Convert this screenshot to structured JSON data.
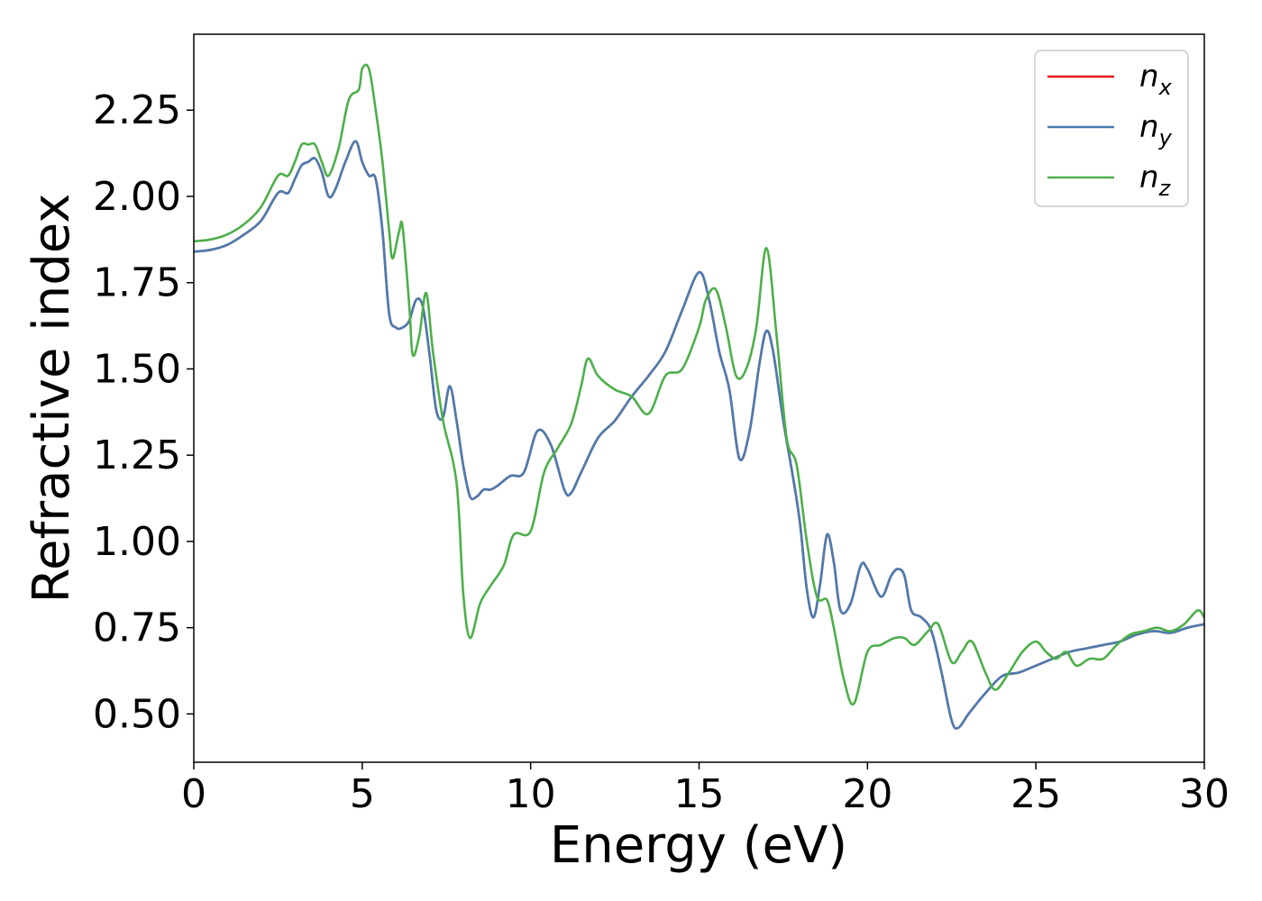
{
  "chart_data": {
    "type": "line",
    "title": "",
    "xlabel": "Energy (eV)",
    "ylabel": "Refractive index",
    "xlim": [
      0,
      30
    ],
    "ylim": [
      0.36,
      2.47
    ],
    "xticks": [
      0,
      5,
      10,
      15,
      20,
      25,
      30
    ],
    "yticks": [
      0.5,
      0.75,
      1.0,
      1.25,
      1.5,
      1.75,
      2.0,
      2.25
    ],
    "ytick_labels": [
      "0.50",
      "0.75",
      "1.00",
      "1.25",
      "1.50",
      "1.75",
      "2.00",
      "2.25"
    ],
    "grid": false,
    "legend_position": "top-right",
    "series": [
      {
        "name": "n",
        "subscript": "x",
        "color": "#e41a1c",
        "x": [
          0,
          0.5,
          1,
          1.5,
          2,
          2.5,
          2.8,
          3.0,
          3.2,
          3.4,
          3.6,
          3.8,
          4.0,
          4.2,
          4.5,
          4.8,
          5.0,
          5.2,
          5.4,
          5.6,
          5.8,
          6.0,
          6.2,
          6.4,
          6.6,
          6.8,
          7.0,
          7.2,
          7.4,
          7.6,
          7.8,
          8.0,
          8.2,
          8.4,
          8.6,
          8.8,
          9.0,
          9.4,
          9.8,
          10.2,
          10.6,
          11.0,
          11.2,
          11.5,
          12.0,
          12.5,
          13.0,
          13.5,
          14.0,
          14.5,
          15.0,
          15.3,
          15.6,
          15.9,
          16.2,
          16.5,
          16.8,
          17.0,
          17.2,
          17.5,
          17.8,
          18.0,
          18.2,
          18.4,
          18.6,
          18.8,
          19.0,
          19.2,
          19.5,
          19.8,
          20.0,
          20.4,
          20.7,
          20.9,
          21.1,
          21.3,
          21.6,
          21.9,
          22.2,
          22.5,
          22.7,
          23.0,
          23.5,
          24.0,
          24.5,
          25.0,
          25.5,
          26.0,
          26.5,
          27.0,
          27.5,
          28.0,
          28.5,
          29.0,
          29.5,
          30.0
        ],
        "y": [
          1.84,
          1.845,
          1.86,
          1.89,
          1.93,
          2.01,
          2.01,
          2.05,
          2.09,
          2.1,
          2.11,
          2.07,
          2.0,
          2.02,
          2.1,
          2.16,
          2.1,
          2.06,
          2.05,
          1.9,
          1.66,
          1.62,
          1.62,
          1.64,
          1.7,
          1.68,
          1.54,
          1.38,
          1.36,
          1.45,
          1.35,
          1.22,
          1.13,
          1.13,
          1.15,
          1.15,
          1.16,
          1.19,
          1.2,
          1.32,
          1.28,
          1.15,
          1.14,
          1.2,
          1.3,
          1.35,
          1.42,
          1.48,
          1.55,
          1.67,
          1.78,
          1.7,
          1.55,
          1.44,
          1.24,
          1.32,
          1.52,
          1.61,
          1.55,
          1.35,
          1.18,
          1.05,
          0.86,
          0.78,
          0.88,
          1.02,
          0.94,
          0.8,
          0.82,
          0.93,
          0.92,
          0.84,
          0.9,
          0.92,
          0.9,
          0.8,
          0.78,
          0.74,
          0.62,
          0.48,
          0.46,
          0.5,
          0.56,
          0.61,
          0.62,
          0.64,
          0.66,
          0.68,
          0.69,
          0.7,
          0.71,
          0.73,
          0.74,
          0.735,
          0.75,
          0.76
        ]
      },
      {
        "name": "n",
        "subscript": "y",
        "color": "#4a7cb0",
        "x": [
          0,
          0.5,
          1,
          1.5,
          2,
          2.5,
          2.8,
          3.0,
          3.2,
          3.4,
          3.6,
          3.8,
          4.0,
          4.2,
          4.5,
          4.8,
          5.0,
          5.2,
          5.4,
          5.6,
          5.8,
          6.0,
          6.2,
          6.4,
          6.6,
          6.8,
          7.0,
          7.2,
          7.4,
          7.6,
          7.8,
          8.0,
          8.2,
          8.4,
          8.6,
          8.8,
          9.0,
          9.4,
          9.8,
          10.2,
          10.6,
          11.0,
          11.2,
          11.5,
          12.0,
          12.5,
          13.0,
          13.5,
          14.0,
          14.5,
          15.0,
          15.3,
          15.6,
          15.9,
          16.2,
          16.5,
          16.8,
          17.0,
          17.2,
          17.5,
          17.8,
          18.0,
          18.2,
          18.4,
          18.6,
          18.8,
          19.0,
          19.2,
          19.5,
          19.8,
          20.0,
          20.4,
          20.7,
          20.9,
          21.1,
          21.3,
          21.6,
          21.9,
          22.2,
          22.5,
          22.7,
          23.0,
          23.5,
          24.0,
          24.5,
          25.0,
          25.5,
          26.0,
          26.5,
          27.0,
          27.5,
          28.0,
          28.5,
          29.0,
          29.5,
          30.0
        ],
        "y": [
          1.84,
          1.845,
          1.86,
          1.89,
          1.93,
          2.01,
          2.01,
          2.05,
          2.09,
          2.1,
          2.11,
          2.07,
          2.0,
          2.02,
          2.1,
          2.16,
          2.1,
          2.06,
          2.05,
          1.9,
          1.66,
          1.62,
          1.62,
          1.64,
          1.7,
          1.68,
          1.54,
          1.38,
          1.36,
          1.45,
          1.35,
          1.22,
          1.13,
          1.13,
          1.15,
          1.15,
          1.16,
          1.19,
          1.2,
          1.32,
          1.28,
          1.15,
          1.14,
          1.2,
          1.3,
          1.35,
          1.42,
          1.48,
          1.55,
          1.67,
          1.78,
          1.7,
          1.55,
          1.44,
          1.24,
          1.32,
          1.52,
          1.61,
          1.55,
          1.35,
          1.18,
          1.05,
          0.86,
          0.78,
          0.88,
          1.02,
          0.94,
          0.8,
          0.82,
          0.93,
          0.92,
          0.84,
          0.9,
          0.92,
          0.9,
          0.8,
          0.78,
          0.74,
          0.62,
          0.48,
          0.46,
          0.5,
          0.56,
          0.61,
          0.62,
          0.64,
          0.66,
          0.68,
          0.69,
          0.7,
          0.71,
          0.73,
          0.74,
          0.735,
          0.75,
          0.76
        ]
      },
      {
        "name": "n",
        "subscript": "z",
        "color": "#4daf4a",
        "x": [
          0,
          0.5,
          1,
          1.5,
          2,
          2.5,
          2.8,
          3.0,
          3.2,
          3.4,
          3.6,
          3.8,
          4.0,
          4.3,
          4.6,
          4.9,
          5.0,
          5.2,
          5.4,
          5.6,
          5.8,
          5.9,
          6.1,
          6.2,
          6.4,
          6.5,
          6.7,
          6.9,
          7.1,
          7.4,
          7.8,
          8.0,
          8.2,
          8.5,
          8.8,
          9.2,
          9.5,
          10.0,
          10.4,
          10.8,
          11.2,
          11.5,
          11.7,
          12.0,
          12.5,
          13.0,
          13.5,
          14.0,
          14.5,
          15.0,
          15.2,
          15.5,
          15.8,
          16.1,
          16.4,
          16.7,
          17.0,
          17.3,
          17.6,
          17.9,
          18.2,
          18.5,
          18.8,
          19.0,
          19.3,
          19.6,
          20.0,
          20.4,
          20.8,
          21.1,
          21.4,
          21.8,
          22.1,
          22.5,
          22.8,
          23.1,
          23.5,
          23.8,
          24.2,
          24.6,
          25.0,
          25.3,
          25.6,
          25.9,
          26.2,
          26.6,
          27.0,
          27.4,
          27.8,
          28.2,
          28.6,
          29.0,
          29.4,
          29.8,
          30.0
        ],
        "y": [
          1.87,
          1.875,
          1.89,
          1.92,
          1.97,
          2.06,
          2.06,
          2.1,
          2.15,
          2.15,
          2.15,
          2.1,
          2.06,
          2.14,
          2.28,
          2.31,
          2.37,
          2.37,
          2.25,
          2.1,
          1.9,
          1.82,
          1.9,
          1.91,
          1.68,
          1.54,
          1.6,
          1.72,
          1.55,
          1.35,
          1.17,
          0.85,
          0.72,
          0.82,
          0.87,
          0.93,
          1.02,
          1.03,
          1.2,
          1.27,
          1.34,
          1.45,
          1.53,
          1.48,
          1.44,
          1.42,
          1.37,
          1.48,
          1.5,
          1.62,
          1.7,
          1.73,
          1.62,
          1.48,
          1.5,
          1.62,
          1.85,
          1.6,
          1.3,
          1.22,
          1.0,
          0.84,
          0.83,
          0.75,
          0.6,
          0.53,
          0.68,
          0.7,
          0.72,
          0.72,
          0.7,
          0.74,
          0.76,
          0.65,
          0.68,
          0.71,
          0.62,
          0.57,
          0.62,
          0.68,
          0.71,
          0.68,
          0.66,
          0.68,
          0.64,
          0.66,
          0.66,
          0.7,
          0.73,
          0.74,
          0.75,
          0.74,
          0.76,
          0.8,
          0.78
        ]
      }
    ]
  }
}
